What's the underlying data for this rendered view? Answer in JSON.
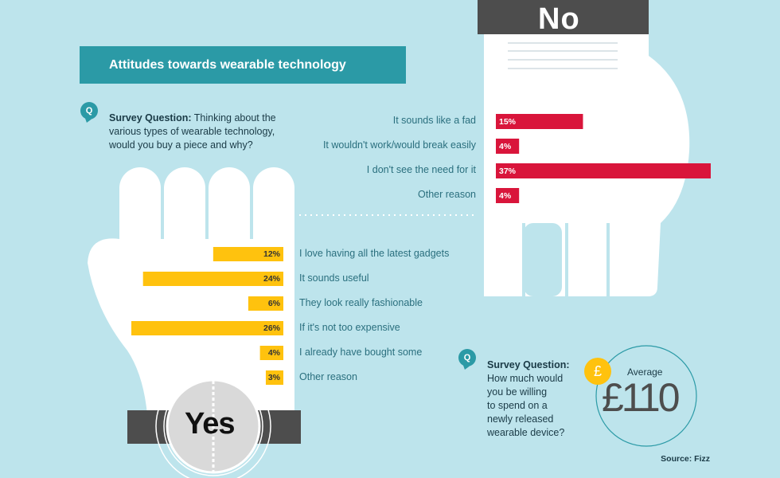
{
  "title": "Attitudes towards wearable technology",
  "question1": {
    "prefix": "Survey Question:",
    "lines": [
      " Thinking about the",
      "various types of wearable technology,",
      "would you buy a piece and why?"
    ]
  },
  "question2": {
    "prefix": "Survey Question:",
    "lines": [
      "How much would",
      "you be willing",
      "to spend on a",
      "newly released",
      "wearable device?"
    ]
  },
  "q_icon": "Q",
  "no_label": "No",
  "yes_label": "Yes",
  "average": {
    "label": "Average",
    "value": "£110",
    "currency_icon": "£"
  },
  "source": "Source: Fizz",
  "colors": {
    "no": "#d9153b",
    "yes": "#ffc20e",
    "background": "#bde4ec",
    "accent": "#2b9aa6"
  },
  "chart_data": [
    {
      "type": "bar",
      "orientation": "horizontal",
      "group": "No",
      "categories": [
        "It sounds like a fad",
        "It wouldn't work/would break easily",
        "I don't see the need for it",
        "Other reason"
      ],
      "values": [
        15,
        4,
        37,
        4
      ],
      "value_labels": [
        "15%",
        "4%",
        "37%",
        "4%"
      ],
      "unit": "%"
    },
    {
      "type": "bar",
      "orientation": "horizontal",
      "group": "Yes",
      "categories": [
        "I love having all the latest gadgets",
        "It sounds useful",
        "They look really fashionable",
        "If it's not too expensive",
        "I already have bought some",
        "Other reason"
      ],
      "values": [
        12,
        24,
        6,
        26,
        4,
        3
      ],
      "value_labels": [
        "12%",
        "24%",
        "6%",
        "26%",
        "4%",
        "3%"
      ],
      "unit": "%"
    }
  ]
}
